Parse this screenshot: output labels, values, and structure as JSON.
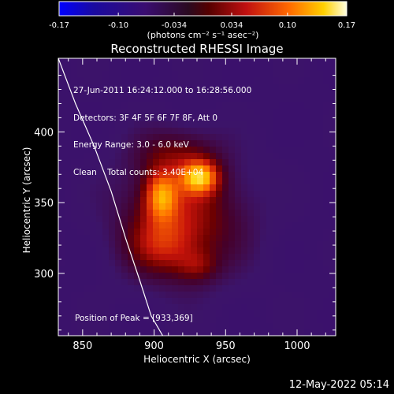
{
  "header": {
    "title": "Reconstructed RHESSI Image"
  },
  "colorbar": {
    "ticks": [
      "-0.17",
      "-0.10",
      "-0.034",
      "0.034",
      "0.10",
      "0.17"
    ],
    "tick_values": [
      -0.17,
      -0.1,
      -0.034,
      0.034,
      0.1,
      0.17
    ],
    "range": [
      -0.17,
      0.17
    ],
    "unit_label": "(photons cm⁻² s⁻¹ asec⁻²)"
  },
  "annotation": {
    "lines": [
      "27-Jun-2011 16:24:12.000 to 16:28:56.000",
      "Detectors: 3F 4F 5F 6F 7F 8F, Att 0",
      "Energy Range: 3.0 - 6.0 keV",
      "Clean    Total counts: 3.40E+04"
    ],
    "peak_text": "Position of Peak = [933,369]"
  },
  "footer": {
    "date": "12-May-2022 05:14"
  },
  "chart_data": {
    "type": "heatmap",
    "title": "Reconstructed RHESSI Image",
    "xlabel": "Heliocentric X (arcsec)",
    "ylabel": "Heliocentric Y (arcsec)",
    "xlim": [
      833,
      1027
    ],
    "ylim": [
      256,
      452
    ],
    "xticks": [
      850,
      900,
      950,
      1000
    ],
    "yticks": [
      300,
      350,
      400
    ],
    "colormap_range": [
      -0.17,
      0.17
    ],
    "peak": {
      "x": 933,
      "y": 369
    },
    "limb_curve": [
      [
        833,
        452
      ],
      [
        845,
        420
      ],
      [
        858,
        390
      ],
      [
        870,
        358
      ],
      [
        880,
        325
      ],
      [
        890,
        295
      ],
      [
        898,
        270
      ],
      [
        906,
        256
      ]
    ],
    "blobs": [
      {
        "x": 932,
        "y": 368,
        "sx": 9,
        "sy": 8,
        "amp": 0.13
      },
      {
        "x": 905,
        "y": 355,
        "sx": 8,
        "sy": 12,
        "amp": 0.1
      },
      {
        "x": 920,
        "y": 340,
        "sx": 30,
        "sy": 30,
        "amp": 0.08
      },
      {
        "x": 905,
        "y": 320,
        "sx": 16,
        "sy": 14,
        "amp": 0.05
      },
      {
        "x": 930,
        "y": 305,
        "sx": 10,
        "sy": 8,
        "amp": 0.04
      },
      {
        "x": 915,
        "y": 385,
        "sx": 20,
        "sy": 12,
        "amp": 0.04
      }
    ]
  }
}
